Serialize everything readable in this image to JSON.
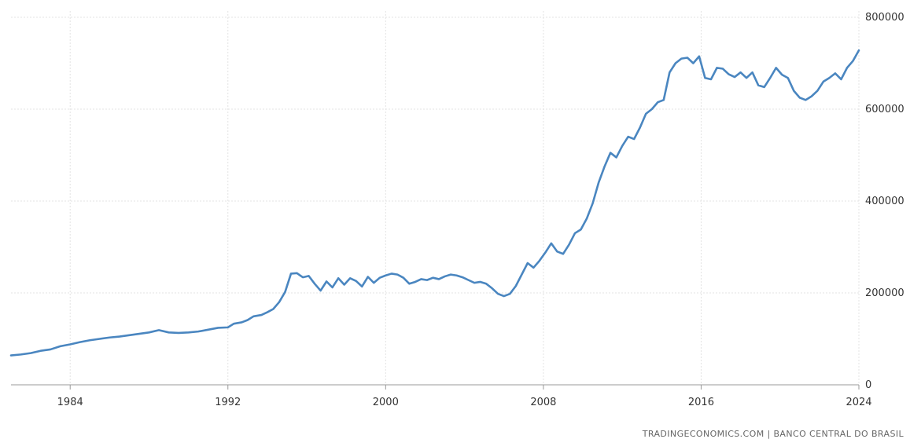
{
  "chart_data": {
    "type": "line",
    "title": "",
    "xlabel": "",
    "ylabel": "",
    "xlim": [
      1981,
      2024
    ],
    "ylim": [
      0,
      800000
    ],
    "x_ticks": [
      1984,
      1992,
      2000,
      2008,
      2016,
      2024
    ],
    "x_tick_labels": [
      "1984",
      "1992",
      "2000",
      "2008",
      "2016",
      "2024"
    ],
    "y_ticks": [
      0,
      200000,
      400000,
      600000,
      800000
    ],
    "y_tick_labels": [
      "0",
      "200000",
      "400000",
      "600000",
      "800000"
    ],
    "grid": true,
    "series": [
      {
        "color": "#4a86c0",
        "x": [
          1981.0,
          1981.5,
          1982.0,
          1982.5,
          1983.0,
          1983.5,
          1984.0,
          1984.5,
          1985.0,
          1985.5,
          1986.0,
          1986.5,
          1987.0,
          1987.5,
          1988.0,
          1988.5,
          1989.0,
          1989.5,
          1990.0,
          1990.5,
          1991.0,
          1991.5,
          1992.0,
          1992.3,
          1992.7,
          1993.0,
          1993.3,
          1993.7,
          1994.0,
          1994.3,
          1994.6,
          1994.9,
          1995.2,
          1995.5,
          1995.8,
          1996.1,
          1996.4,
          1996.7,
          1997.0,
          1997.3,
          1997.6,
          1997.9,
          1998.2,
          1998.5,
          1998.8,
          1999.1,
          1999.4,
          1999.7,
          2000.0,
          2000.3,
          2000.6,
          2000.9,
          2001.2,
          2001.5,
          2001.8,
          2002.1,
          2002.4,
          2002.7,
          2003.0,
          2003.3,
          2003.6,
          2003.9,
          2004.2,
          2004.5,
          2004.8,
          2005.1,
          2005.4,
          2005.7,
          2006.0,
          2006.3,
          2006.6,
          2006.9,
          2007.2,
          2007.5,
          2007.8,
          2008.1,
          2008.4,
          2008.7,
          2009.0,
          2009.3,
          2009.6,
          2009.9,
          2010.2,
          2010.5,
          2010.8,
          2011.1,
          2011.4,
          2011.7,
          2012.0,
          2012.3,
          2012.6,
          2012.9,
          2013.2,
          2013.5,
          2013.8,
          2014.1,
          2014.4,
          2014.7,
          2015.0,
          2015.3,
          2015.6,
          2015.9,
          2016.2,
          2016.5,
          2016.8,
          2017.1,
          2017.4,
          2017.7,
          2018.0,
          2018.3,
          2018.6,
          2018.9,
          2019.2,
          2019.5,
          2019.8,
          2020.1,
          2020.4,
          2020.7,
          2021.0,
          2021.3,
          2021.6,
          2021.9,
          2022.2,
          2022.5,
          2022.8,
          2023.1,
          2023.4,
          2023.7,
          2024.0
        ],
        "values": [
          64000,
          66000,
          69000,
          74000,
          77000,
          84000,
          88000,
          93000,
          97000,
          100000,
          103000,
          105000,
          108000,
          111000,
          114000,
          119000,
          114000,
          113000,
          114000,
          116000,
          120000,
          124000,
          125000,
          133000,
          136000,
          141000,
          149000,
          152000,
          158000,
          165000,
          180000,
          202000,
          242000,
          243000,
          234000,
          237000,
          220000,
          205000,
          225000,
          212000,
          232000,
          218000,
          232000,
          226000,
          214000,
          235000,
          222000,
          233000,
          238000,
          242000,
          240000,
          233000,
          220000,
          224000,
          230000,
          228000,
          233000,
          230000,
          236000,
          240000,
          238000,
          234000,
          228000,
          222000,
          224000,
          220000,
          210000,
          198000,
          193000,
          198000,
          215000,
          240000,
          265000,
          255000,
          270000,
          288000,
          308000,
          290000,
          285000,
          305000,
          330000,
          338000,
          362000,
          395000,
          440000,
          475000,
          505000,
          495000,
          520000,
          540000,
          535000,
          560000,
          590000,
          600000,
          615000,
          620000,
          680000,
          700000,
          710000,
          712000,
          700000,
          715000,
          668000,
          665000,
          690000,
          688000,
          676000,
          670000,
          680000,
          668000,
          680000,
          652000,
          648000,
          668000,
          690000,
          675000,
          668000,
          640000,
          625000,
          620000,
          628000,
          640000,
          660000,
          668000,
          678000,
          665000,
          690000,
          705000,
          728000
        ]
      }
    ]
  },
  "footer": {
    "source_text": "TRADINGECONOMICS.COM  |  BANCO CENTRAL DO BRASIL"
  }
}
